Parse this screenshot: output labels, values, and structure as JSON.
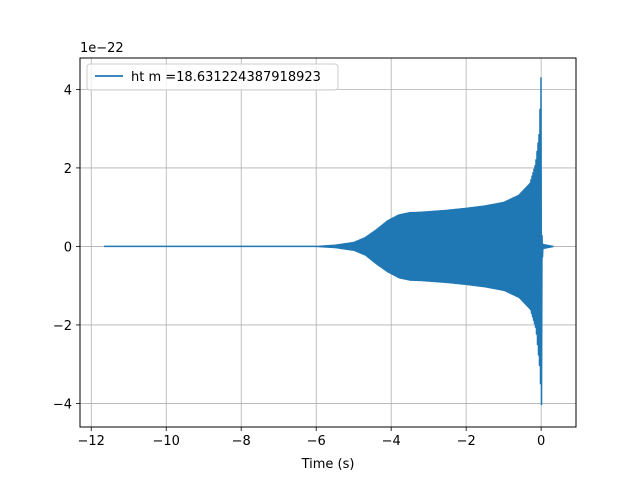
{
  "chart_data": {
    "type": "line",
    "title": "",
    "xlabel": "Time (s)",
    "ylabel": "",
    "y_offset_label": "1e−22",
    "xlim": [
      -12.3,
      0.93
    ],
    "ylim": [
      -4.6,
      4.8
    ],
    "x_ticks": [
      -12,
      -10,
      -8,
      -6,
      -4,
      -2,
      0
    ],
    "x_tick_labels": [
      "−12",
      "−10",
      "−8",
      "−6",
      "−4",
      "−2",
      "0"
    ],
    "y_ticks": [
      -4,
      -2,
      0,
      2,
      4
    ],
    "y_tick_labels": [
      "−4",
      "−2",
      "0",
      "2",
      "4"
    ],
    "grid": true,
    "legend_position": "top-left",
    "series": [
      {
        "name": "ht m =18.631224387918923",
        "color": "#1f77b4",
        "time_span": [
          -11.65,
          0.32
        ],
        "amplitude_envelope": {
          "x": [
            -11.65,
            -6.0,
            -5.5,
            -5.0,
            -4.7,
            -4.4,
            -4.1,
            -3.8,
            -3.5,
            -3.2,
            -2.5,
            -2.0,
            -1.5,
            -1.0,
            -0.6,
            -0.3,
            -0.15,
            -0.05,
            0.0,
            0.02,
            0.05,
            0.32
          ],
          "upper": [
            0.0,
            0.0,
            0.03,
            0.1,
            0.22,
            0.42,
            0.65,
            0.8,
            0.86,
            0.87,
            0.92,
            0.97,
            1.03,
            1.12,
            1.3,
            1.6,
            2.1,
            2.9,
            4.4,
            0.3,
            0.05,
            0.0
          ],
          "lower": [
            0.0,
            0.0,
            -0.03,
            -0.1,
            -0.22,
            -0.45,
            -0.65,
            -0.8,
            -0.86,
            -0.87,
            -0.92,
            -0.97,
            -1.03,
            -1.12,
            -1.3,
            -1.6,
            -2.1,
            -3.1,
            -4.1,
            -0.3,
            -0.05,
            0.0
          ]
        }
      }
    ]
  }
}
